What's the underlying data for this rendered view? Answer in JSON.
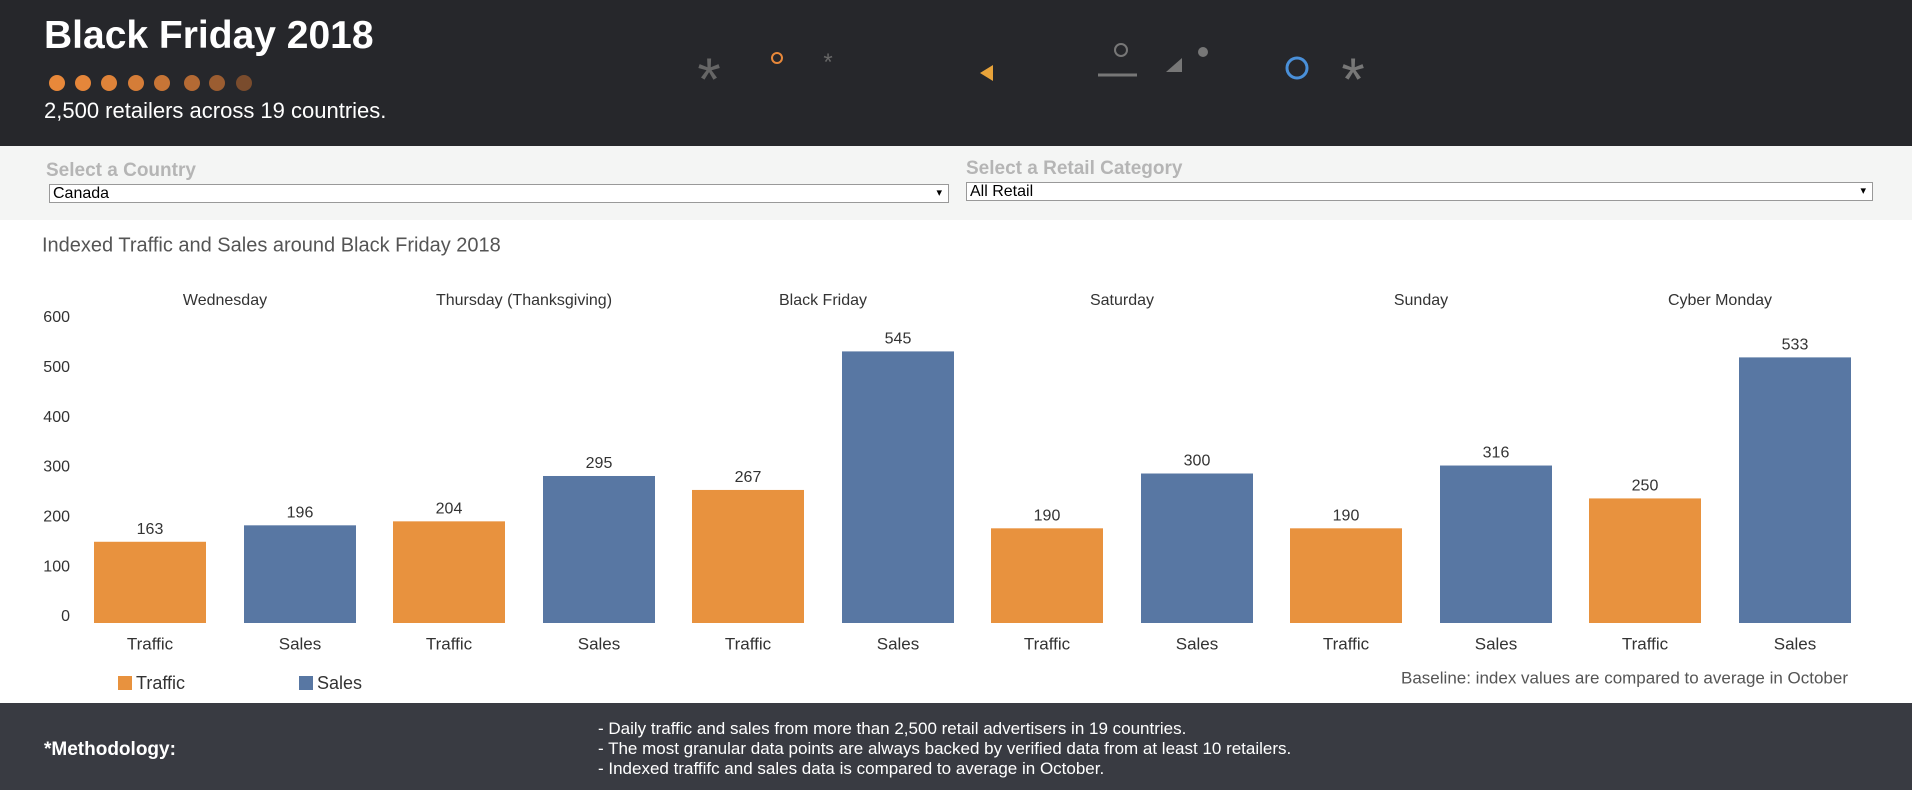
{
  "header": {
    "title": "Black Friday 2018",
    "subtitle": "2,500 retailers across 19 countries."
  },
  "filters": [
    {
      "label": "Select a Country",
      "value": "Canada"
    },
    {
      "label": "Select a Retail Category",
      "value": "All Retail"
    }
  ],
  "chart_data": {
    "type": "bar",
    "title": "Indexed Traffic and Sales around Black Friday 2018",
    "categories": [
      "Wednesday",
      "Thursday (Thanksgiving)",
      "Black Friday",
      "Saturday",
      "Sunday",
      "Cyber Monday"
    ],
    "series": [
      {
        "name": "Traffic",
        "color": "#e8923e",
        "values": [
          163,
          204,
          267,
          190,
          190,
          250
        ]
      },
      {
        "name": "Sales",
        "color": "#5877a3",
        "values": [
          196,
          295,
          545,
          300,
          316,
          533
        ]
      }
    ],
    "ylim": [
      0,
      600
    ],
    "yticks": [
      0,
      100,
      200,
      300,
      400,
      500,
      600
    ],
    "grid": false,
    "note": "Baseline: index values are compared to average in October"
  },
  "methodology": {
    "label": "*Methodology:",
    "lines": [
      "- Daily traffic and sales from more than 2,500 retail advertisers in 19 countries.",
      "- The most granular data points are always backed by verified data from at least 10 retailers.",
      "- Indexed traffifc and sales data is compared to average in October."
    ]
  }
}
